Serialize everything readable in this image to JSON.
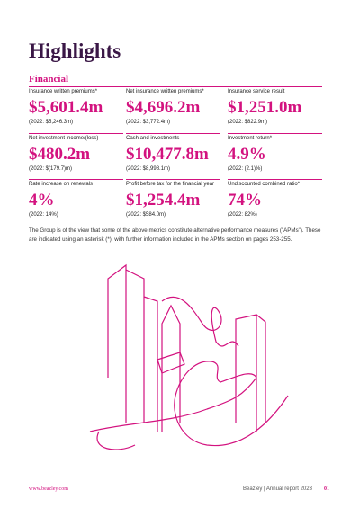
{
  "header": {
    "title": "Highlights",
    "section": "Financial"
  },
  "metrics": [
    {
      "label": "Insurance written premiums*",
      "value": "$5,601.4m",
      "prior": "(2022: $5,246.3m)"
    },
    {
      "label": "Net insurance written premiums*",
      "value": "$4,696.2m",
      "prior": "(2022: $3,772.4m)"
    },
    {
      "label": "Insurance service result",
      "value": "$1,251.0m",
      "prior": "(2022: $822.9m)"
    },
    {
      "label": "Net investment income/(loss)",
      "value": "$480.2m",
      "prior": "(2022: $(179.7)m)"
    },
    {
      "label": "Cash and investments",
      "value": "$10,477.8m",
      "prior": "(2022: $8,998.1m)"
    },
    {
      "label": "Investment return*",
      "value": "4.9%",
      "prior": "(2022: (2.1)%)"
    },
    {
      "label": "Rate increase on renewals",
      "value": "4%",
      "prior": "(2022: 14%)"
    },
    {
      "label": "Profit before tax for the financial year",
      "value": "$1,254.4m",
      "prior": "(2022: $584.0m)"
    },
    {
      "label": "Undiscounted combined ratio*",
      "value": "74%",
      "prior": "(2022: 82%)"
    }
  ],
  "note": "The Group is of the view that some of the above metrics constitute alternative performance measures (\"APMs\"). These are indicated using an asterisk (*), with further information included in the APMs section on pages 253-255.",
  "footer": {
    "website": "www.beazley.com",
    "report": "Beazley | Annual report 2023",
    "page": "01"
  }
}
